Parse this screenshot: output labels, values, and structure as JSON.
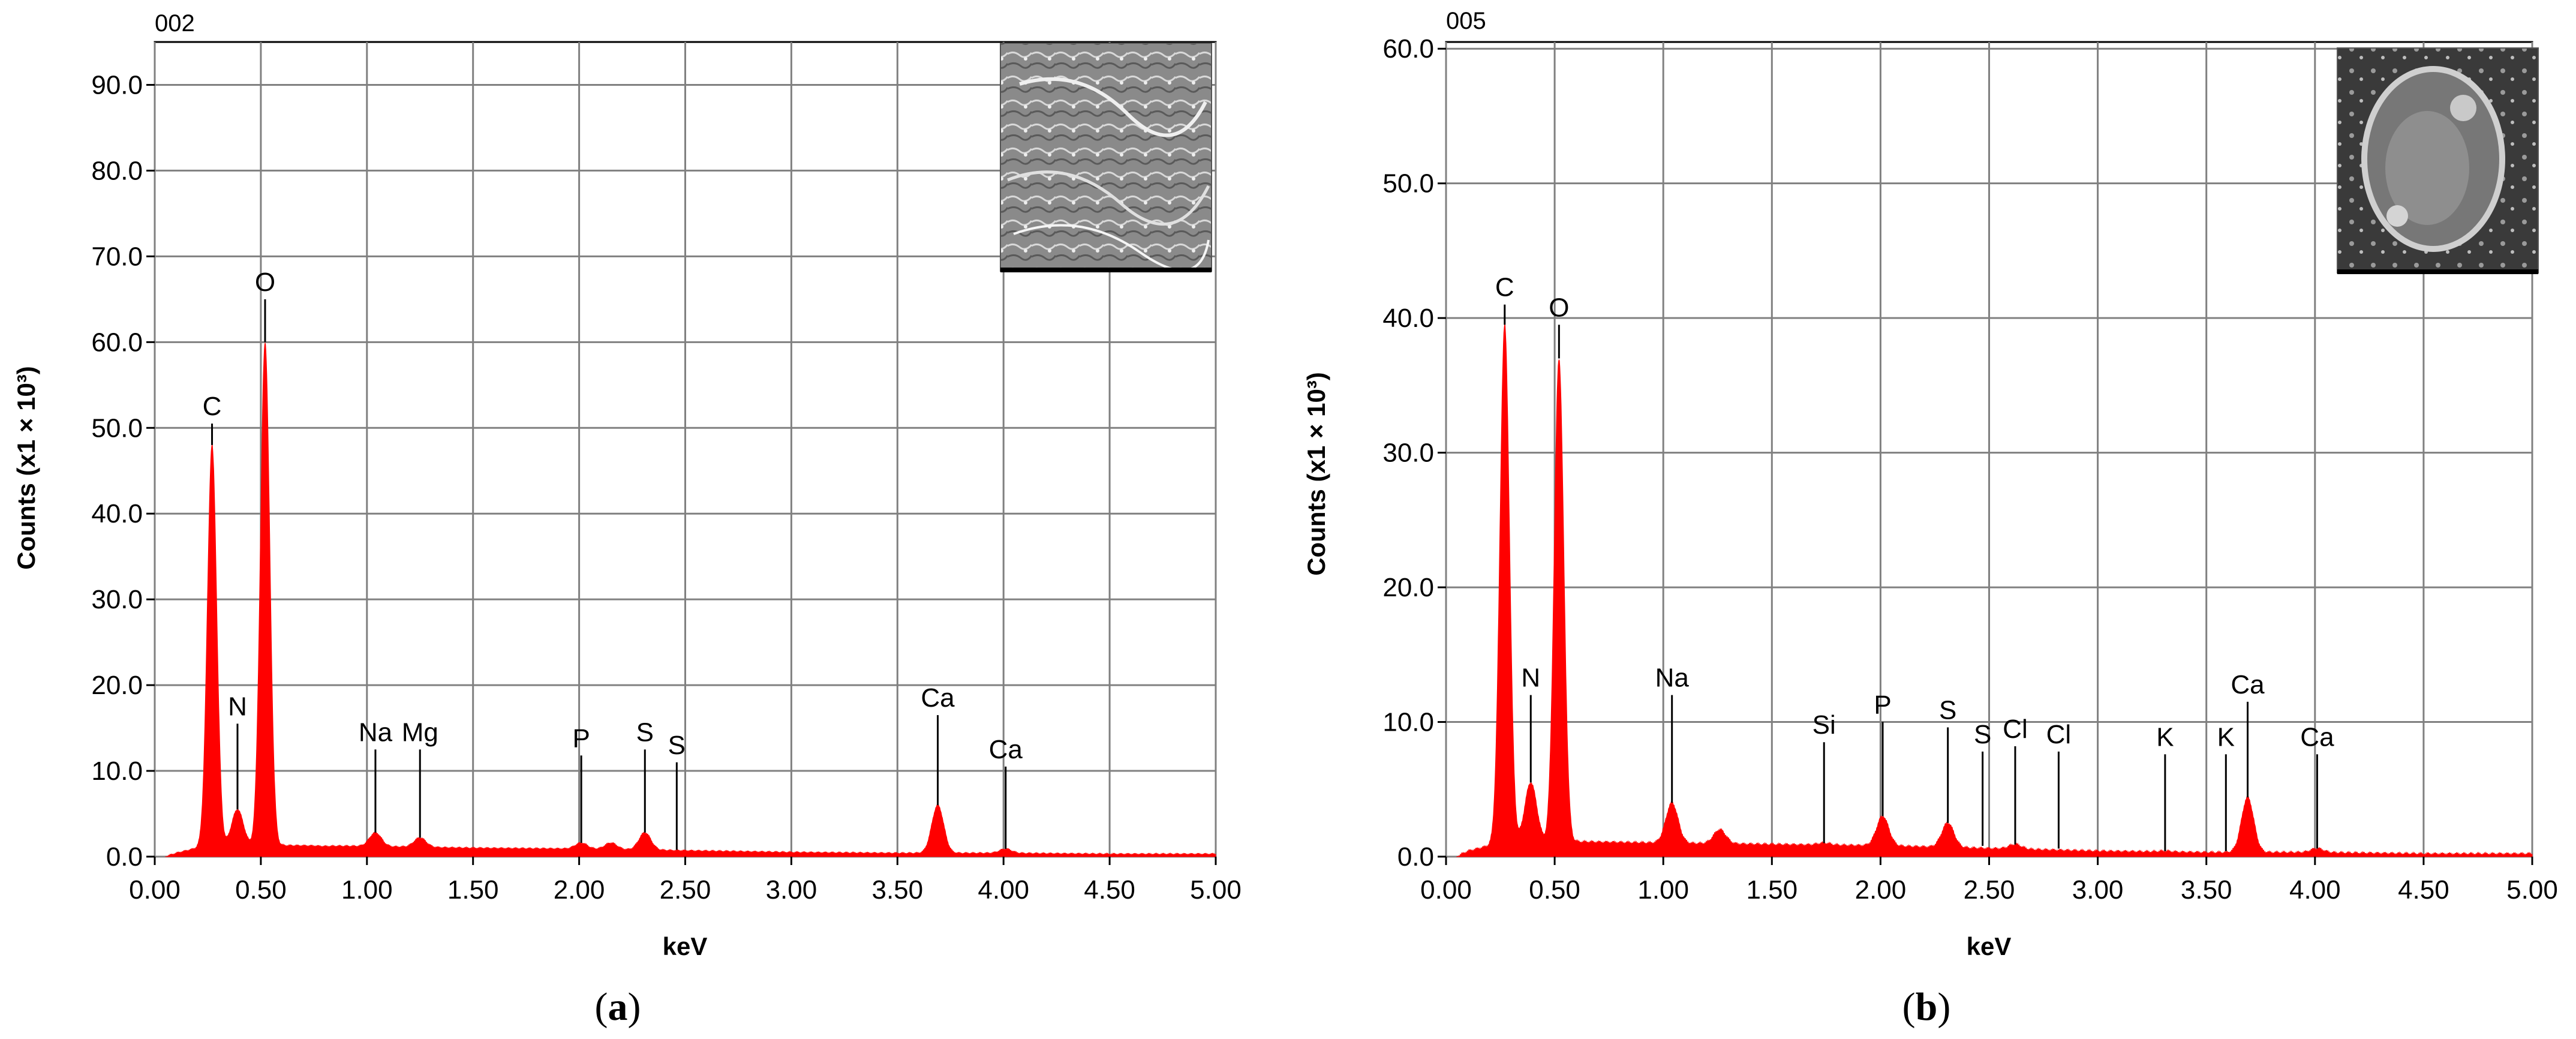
{
  "colors": {
    "spectrum": "#ff0000",
    "grid": "#808080",
    "axis": "#000000"
  },
  "chart_data": [
    {
      "type": "area",
      "panel_label": "a",
      "spectrum_id": "002",
      "xlabel": "keV",
      "ylabel": "Counts (x1 × 10³)",
      "xlim": [
        0,
        5
      ],
      "ylim": [
        0,
        95
      ],
      "grid": true,
      "x_ticks": [
        "0.00",
        "0.50",
        "1.00",
        "1.50",
        "2.00",
        "2.50",
        "3.00",
        "3.50",
        "4.00",
        "4.50",
        "5.00"
      ],
      "y_ticks": [
        "0.0",
        "10.0",
        "20.0",
        "30.0",
        "40.0",
        "50.0",
        "60.0",
        "70.0",
        "80.0",
        "90.0"
      ],
      "inset": "SEM micrograph (top-right)",
      "peaks": [
        {
          "x": 0.27,
          "y": 48
        },
        {
          "x": 0.39,
          "y": 5.5
        },
        {
          "x": 0.52,
          "y": 60
        },
        {
          "x": 0.8,
          "y": 1.2
        },
        {
          "x": 1.04,
          "y": 2.8
        },
        {
          "x": 1.25,
          "y": 2.2
        },
        {
          "x": 2.01,
          "y": 1.6
        },
        {
          "x": 2.15,
          "y": 1.6
        },
        {
          "x": 2.31,
          "y": 2.8
        },
        {
          "x": 3.69,
          "y": 6
        },
        {
          "x": 4.01,
          "y": 0.9
        }
      ],
      "background": [
        [
          0.05,
          0
        ],
        [
          0.1,
          0.4
        ],
        [
          0.2,
          1.0
        ],
        [
          0.6,
          1.3
        ],
        [
          1.0,
          1.2
        ],
        [
          1.5,
          1.0
        ],
        [
          2.0,
          0.9
        ],
        [
          2.5,
          0.7
        ],
        [
          3.0,
          0.5
        ],
        [
          3.5,
          0.4
        ],
        [
          4.0,
          0.4
        ],
        [
          4.5,
          0.3
        ],
        [
          5.0,
          0.3
        ]
      ],
      "peak_labels": [
        {
          "text": "C",
          "x": 0.27,
          "line_top": 50.5,
          "line_bottom": 48
        },
        {
          "text": "N",
          "x": 0.39,
          "line_top": 15.5,
          "line_bottom": 5.5
        },
        {
          "text": "O",
          "x": 0.52,
          "line_top": 65,
          "line_bottom": 60
        },
        {
          "text": "Na",
          "x": 1.04,
          "line_top": 12.5,
          "line_bottom": 2.8
        },
        {
          "text": "Mg",
          "x": 1.25,
          "line_top": 12.5,
          "line_bottom": 2.2
        },
        {
          "text": "P",
          "x": 2.01,
          "line_top": 11.8,
          "line_bottom": 1.6
        },
        {
          "text": "S",
          "x": 2.31,
          "line_top": 12.5,
          "line_bottom": 2.8
        },
        {
          "text": "S",
          "x": 2.46,
          "line_top": 11,
          "line_bottom": 0.8
        },
        {
          "text": "Ca",
          "x": 3.69,
          "line_top": 16.5,
          "line_bottom": 6
        },
        {
          "text": "Ca",
          "x": 4.01,
          "line_top": 10.5,
          "line_bottom": 0.9
        }
      ]
    },
    {
      "type": "area",
      "panel_label": "b",
      "spectrum_id": "005",
      "xlabel": "keV",
      "ylabel": "Counts (x1 × 10³)",
      "xlim": [
        0,
        5
      ],
      "ylim": [
        0,
        60.5
      ],
      "grid": true,
      "x_ticks": [
        "0.00",
        "0.50",
        "1.00",
        "1.50",
        "2.00",
        "2.50",
        "3.00",
        "3.50",
        "4.00",
        "4.50",
        "5.00"
      ],
      "y_ticks": [
        "0.0",
        "10.0",
        "20.0",
        "30.0",
        "40.0",
        "50.0",
        "60.0"
      ],
      "inset": "SEM micrograph (top-right)",
      "peaks": [
        {
          "x": 0.27,
          "y": 39.5
        },
        {
          "x": 0.39,
          "y": 5.5
        },
        {
          "x": 0.52,
          "y": 37
        },
        {
          "x": 1.04,
          "y": 4
        },
        {
          "x": 1.26,
          "y": 2
        },
        {
          "x": 1.74,
          "y": 1.0
        },
        {
          "x": 2.01,
          "y": 3
        },
        {
          "x": 2.31,
          "y": 2.5
        },
        {
          "x": 2.62,
          "y": 0.9
        },
        {
          "x": 3.31,
          "y": 0.4
        },
        {
          "x": 3.69,
          "y": 4.4
        },
        {
          "x": 4.01,
          "y": 0.6
        }
      ],
      "background": [
        [
          0.05,
          0
        ],
        [
          0.1,
          0.4
        ],
        [
          0.2,
          0.8
        ],
        [
          0.6,
          1.1
        ],
        [
          1.0,
          1.0
        ],
        [
          1.5,
          0.9
        ],
        [
          2.0,
          0.8
        ],
        [
          2.5,
          0.6
        ],
        [
          3.0,
          0.4
        ],
        [
          3.5,
          0.3
        ],
        [
          4.0,
          0.3
        ],
        [
          4.5,
          0.2
        ],
        [
          5.0,
          0.2
        ]
      ],
      "peak_labels": [
        {
          "text": "C",
          "x": 0.27,
          "line_top": 41,
          "line_bottom": 39.5
        },
        {
          "text": "N",
          "x": 0.39,
          "line_top": 12,
          "line_bottom": 5.5
        },
        {
          "text": "O",
          "x": 0.52,
          "line_top": 39.5,
          "line_bottom": 37
        },
        {
          "text": "Na",
          "x": 1.04,
          "line_top": 12,
          "line_bottom": 4
        },
        {
          "text": "Si",
          "x": 1.74,
          "line_top": 8.5,
          "line_bottom": 1.0
        },
        {
          "text": "P",
          "x": 2.01,
          "line_top": 10,
          "line_bottom": 3
        },
        {
          "text": "S",
          "x": 2.31,
          "line_top": 9.6,
          "line_bottom": 2.5
        },
        {
          "text": "S",
          "x": 2.47,
          "line_top": 7.8,
          "line_bottom": 0.8
        },
        {
          "text": "Cl",
          "x": 2.62,
          "line_top": 8.2,
          "line_bottom": 0.9
        },
        {
          "text": "Cl",
          "x": 2.82,
          "line_top": 7.8,
          "line_bottom": 0.6
        },
        {
          "text": "K",
          "x": 3.31,
          "line_top": 7.6,
          "line_bottom": 0.4
        },
        {
          "text": "K",
          "x": 3.59,
          "line_top": 7.6,
          "line_bottom": 0.4
        },
        {
          "text": "Ca",
          "x": 3.69,
          "line_top": 11.5,
          "line_bottom": 4.4
        },
        {
          "text": "Ca",
          "x": 4.01,
          "line_top": 7.6,
          "line_bottom": 0.6
        }
      ]
    }
  ]
}
